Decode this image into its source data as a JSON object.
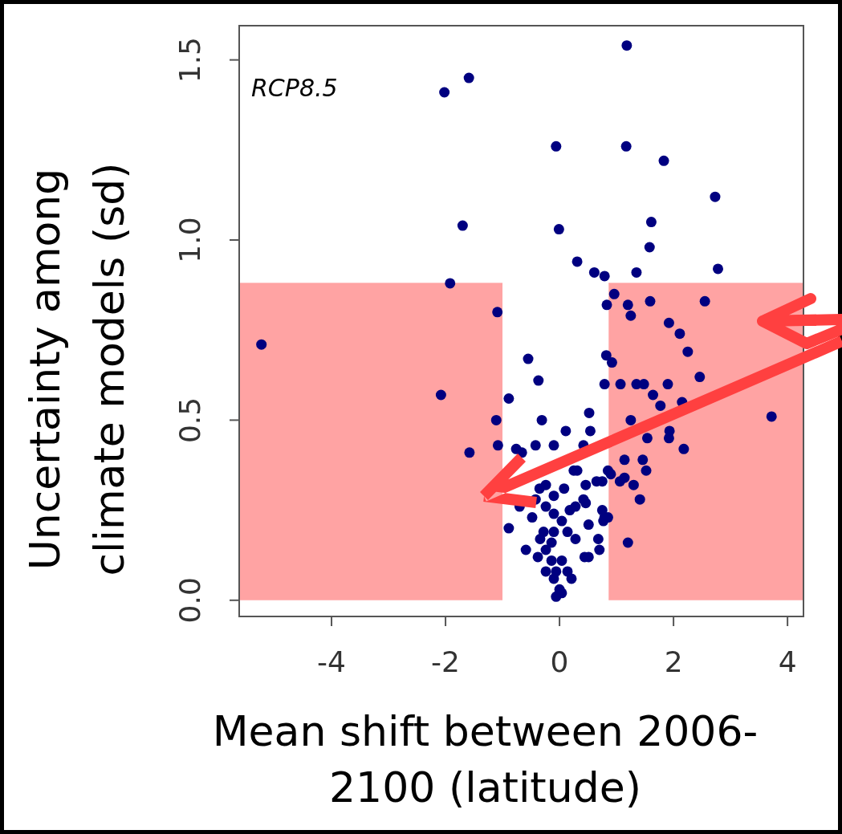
{
  "chart_data": {
    "type": "scatter",
    "xlabel": "Mean shift between 2006-2100 (latitude)",
    "ylabel": "Uncertainty among climate models (sd)",
    "annotations": [
      "RCP8.5"
    ],
    "xlim": [
      -5.62,
      4.28
    ],
    "xticks": [
      -4,
      -2,
      0,
      2,
      4
    ],
    "ylim": [
      -0.045,
      1.595
    ],
    "yticks": [
      {
        "value": 0,
        "label": "0.0"
      },
      0.5,
      {
        "value": 1,
        "label": "1.0"
      },
      1.5
    ],
    "grid": false,
    "legend": false,
    "marker": "circle",
    "series": [
      {
        "type": "area",
        "marker": "none",
        "color": "#ffa3a3",
        "x": [
          -5.62,
          -1.0
        ],
        "values": [
          0.88,
          0.88
        ]
      },
      {
        "type": "area",
        "marker": "none",
        "color": "#ffa3a3",
        "x": [
          0.86,
          4.28
        ],
        "values": [
          0.88,
          0.88
        ]
      },
      {
        "type": "scatter",
        "color": "#000080",
        "x": [
          1.18,
          -1.59,
          -2.02,
          -0.06,
          1.17,
          1.83,
          2.73,
          -1.7,
          -0.01,
          1.61,
          1.58,
          0.31,
          0.61,
          0.79,
          1.35,
          2.78,
          -1.92,
          0.96,
          0.83,
          1.2,
          1.25,
          1.59,
          2.55,
          -1.09,
          1.92,
          2.11,
          2.25,
          -5.23,
          -0.55,
          0.82,
          0.92,
          2.46,
          -0.37,
          0.79,
          1.07,
          1.35,
          1.48,
          1.9,
          1.64,
          1.77,
          2.15,
          -2.08,
          -0.89,
          3.72,
          -1.11,
          -0.31,
          0.52,
          1.25,
          0.11,
          0.54,
          1.54,
          1.93,
          1.92,
          2.18,
          -1.08,
          -0.1,
          -0.42,
          -0.66,
          -0.76,
          0.42,
          -1.58,
          1.14,
          1.46,
          1.52,
          0.25,
          0.31,
          0.9,
          0.85,
          1.06,
          1.14,
          1.3,
          0.75,
          0.65,
          0.46,
          -0.35,
          -0.24,
          0.08,
          -0.1,
          -0.42,
          -0.7,
          0.42,
          0.46,
          0.18,
          0.28,
          -0.24,
          -0.1,
          0.04,
          -0.48,
          0.51,
          0.75,
          0.77,
          0.79,
          1.41,
          -0.89,
          -0.28,
          -0.1,
          0.14,
          0.28,
          -0.34,
          -0.14,
          -0.59,
          0.68,
          0.7,
          0.51,
          0.44,
          -0.38,
          -0.24,
          -0.14,
          0.04,
          -0.24,
          -0.06,
          0.14,
          -0.1,
          0.21,
          0.0,
          -0.06,
          0.04,
          0.85,
          1.2
        ],
        "values": [
          1.54,
          1.45,
          1.41,
          1.26,
          1.26,
          1.22,
          1.12,
          1.04,
          1.03,
          1.05,
          0.98,
          0.94,
          0.91,
          0.9,
          0.91,
          0.92,
          0.88,
          0.85,
          0.82,
          0.82,
          0.79,
          0.83,
          0.83,
          0.8,
          0.77,
          0.74,
          0.69,
          0.71,
          0.67,
          0.68,
          0.66,
          0.62,
          0.61,
          0.6,
          0.6,
          0.6,
          0.6,
          0.6,
          0.57,
          0.54,
          0.55,
          0.57,
          0.56,
          0.51,
          0.5,
          0.5,
          0.52,
          0.5,
          0.47,
          0.47,
          0.45,
          0.47,
          0.45,
          0.42,
          0.43,
          0.43,
          0.43,
          0.41,
          0.42,
          0.43,
          0.41,
          0.39,
          0.39,
          0.36,
          0.36,
          0.36,
          0.35,
          0.36,
          0.33,
          0.34,
          0.32,
          0.33,
          0.33,
          0.32,
          0.31,
          0.32,
          0.31,
          0.29,
          0.28,
          0.26,
          0.28,
          0.27,
          0.25,
          0.26,
          0.26,
          0.24,
          0.22,
          0.23,
          0.21,
          0.25,
          0.22,
          0.23,
          0.28,
          0.2,
          0.19,
          0.19,
          0.19,
          0.17,
          0.17,
          0.16,
          0.14,
          0.17,
          0.14,
          0.12,
          0.12,
          0.12,
          0.14,
          0.11,
          0.11,
          0.08,
          0.08,
          0.08,
          0.06,
          0.06,
          0.03,
          0.01,
          0.02,
          0.23,
          0.16
        ]
      }
    ]
  }
}
